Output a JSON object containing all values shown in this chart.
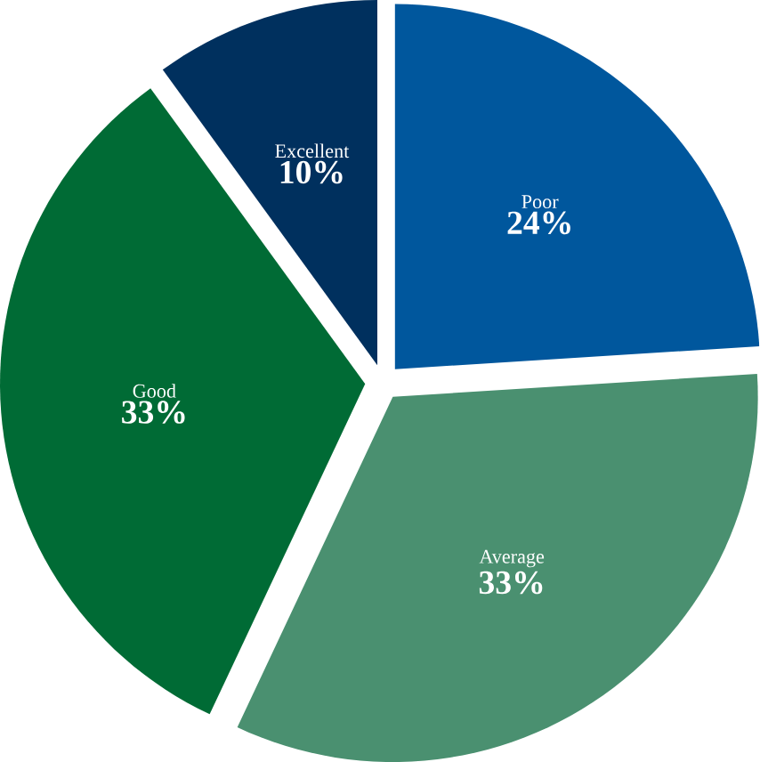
{
  "chart_data": {
    "type": "pie",
    "categories": [
      "Poor",
      "Average",
      "Good",
      "Excellent"
    ],
    "values": [
      24,
      33,
      33,
      10
    ],
    "value_labels": [
      "24%",
      "33%",
      "33%",
      "10%"
    ],
    "colors": [
      "#00579d",
      "#4a9070",
      "#006b35",
      "#00305e"
    ]
  }
}
